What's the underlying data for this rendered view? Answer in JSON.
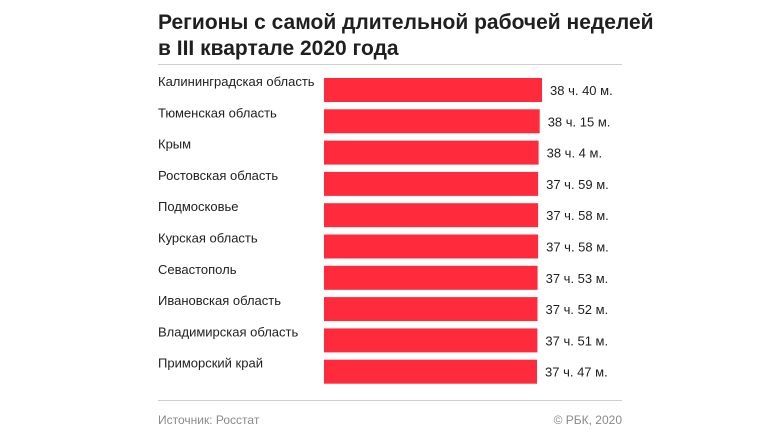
{
  "title_line1": "Регионы с самой длительной рабочей неделей",
  "title_line2": "в III квартале 2020 года",
  "source": "Источник: Росстат",
  "copyright": "© РБК, 2020",
  "colors": {
    "bar": "#ff2b3c",
    "text": "#1f1f1f",
    "muted": "#8a8a8a"
  },
  "chart_data": {
    "type": "bar",
    "orientation": "horizontal",
    "title": "Регионы с самой длительной рабочей неделей в III квартале 2020 года",
    "unit": "minutes",
    "categories": [
      "Калининградская область",
      "Тюменская область",
      "Крым",
      "Ростовская область",
      "Подмосковье",
      "Курская область",
      "Севастополь",
      "Ивановская область",
      "Владимирская область",
      "Приморский край"
    ],
    "values": [
      2320,
      2295,
      2284,
      2279,
      2278,
      2278,
      2273,
      2272,
      2271,
      2267
    ],
    "labels": [
      "38 ч. 40 м.",
      "38 ч. 15 м.",
      "38 ч. 4 м.",
      "37 ч. 59 м.",
      "37 ч. 58 м.",
      "37 ч. 58 м.",
      "37 ч. 53 м.",
      "37 ч. 52 м.",
      "37 ч. 51 м.",
      "37 ч. 47 м."
    ],
    "xlim": [
      0,
      2320
    ]
  }
}
